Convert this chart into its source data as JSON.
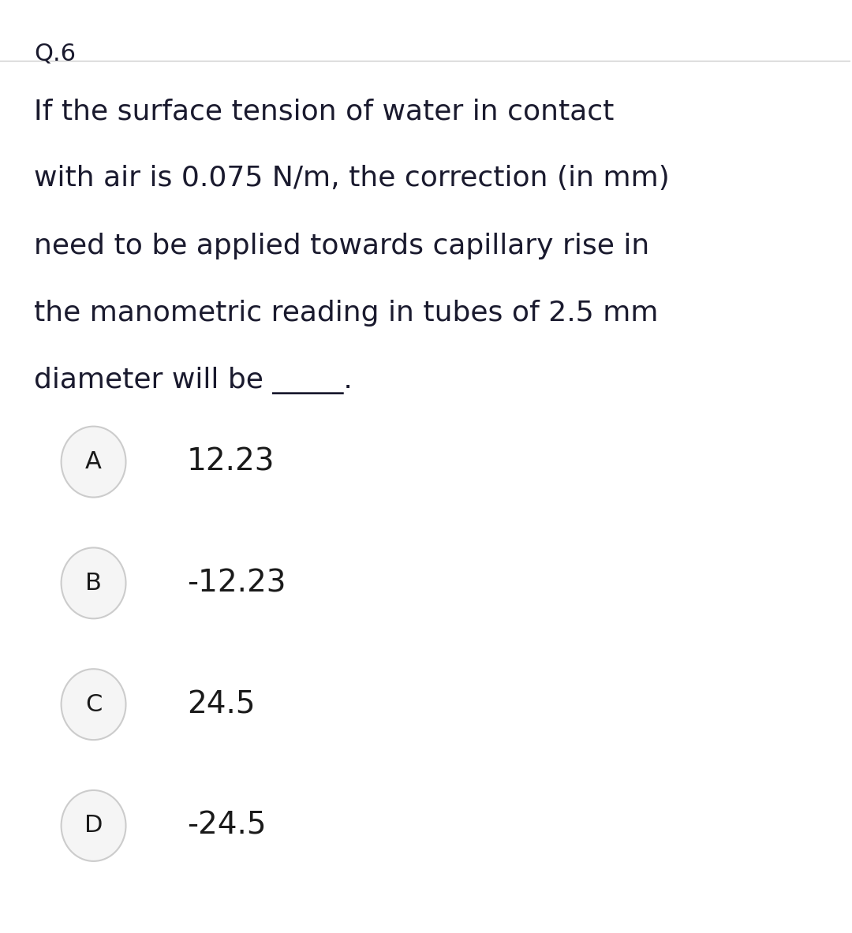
{
  "question_label": "Q.6",
  "question_text_lines": [
    "If the surface tension of water in contact",
    "with air is 0.075 N/m, the correction (in mm)",
    "need to be applied towards capillary rise in",
    "the manometric reading in tubes of 2.5 mm",
    "diameter will be _____."
  ],
  "options": [
    {
      "label": "A",
      "text": "12.23"
    },
    {
      "label": "B",
      "text": "-12.23"
    },
    {
      "label": "C",
      "text": "24.5"
    },
    {
      "label": "D",
      "text": "-24.5"
    }
  ],
  "bg_color": "#ffffff",
  "text_color": "#1a1a2e",
  "option_text_color": "#1a1a1a",
  "circle_edge_color": "#cccccc",
  "circle_face_color": "#f5f5f5",
  "divider_color": "#cccccc",
  "question_label_fontsize": 22,
  "question_text_fontsize": 26,
  "option_label_fontsize": 22,
  "option_text_fontsize": 28,
  "fig_width": 10.8,
  "fig_height": 11.83
}
